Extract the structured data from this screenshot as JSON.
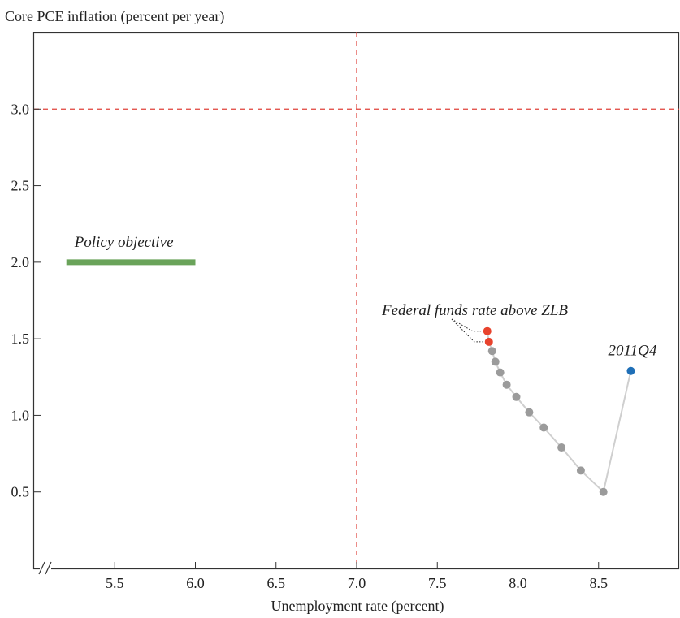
{
  "chart_data": {
    "type": "scatter",
    "ylabel": "Core PCE inflation (percent per year)",
    "xlabel": "Unemployment rate (percent)",
    "xlim": [
      5.0,
      9.0
    ],
    "ylim": [
      0.0,
      3.5
    ],
    "x_ticks": [
      5.5,
      6.0,
      6.5,
      7.0,
      7.5,
      8.0,
      8.5
    ],
    "x_tick_labels": [
      "5.5",
      "6.0",
      "6.5",
      "7.0",
      "7.5",
      "8.0",
      "8.5"
    ],
    "y_ticks": [
      0.5,
      1.0,
      1.5,
      2.0,
      2.5,
      3.0
    ],
    "y_tick_labels": [
      "0.5",
      "1.0",
      "1.5",
      "2.0",
      "2.5",
      "3.0"
    ],
    "grid": false,
    "threshold_lines": {
      "x": 7.0,
      "y": 3.0,
      "color": "#e0413a"
    },
    "policy_objective": {
      "label": "Policy objective",
      "y": 2.0,
      "x_range": [
        5.2,
        6.0
      ],
      "color": "#6aa35a"
    },
    "path": {
      "color": "#cfcfcf",
      "points": [
        {
          "x": 8.7,
          "y": 1.29,
          "color": "#1f6fb7"
        },
        {
          "x": 8.53,
          "y": 0.5,
          "color": "#9b9b9b"
        },
        {
          "x": 8.39,
          "y": 0.64,
          "color": "#9b9b9b"
        },
        {
          "x": 8.27,
          "y": 0.79,
          "color": "#9b9b9b"
        },
        {
          "x": 8.16,
          "y": 0.92,
          "color": "#9b9b9b"
        },
        {
          "x": 8.07,
          "y": 1.02,
          "color": "#9b9b9b"
        },
        {
          "x": 7.99,
          "y": 1.12,
          "color": "#9b9b9b"
        },
        {
          "x": 7.93,
          "y": 1.2,
          "color": "#9b9b9b"
        },
        {
          "x": 7.89,
          "y": 1.28,
          "color": "#9b9b9b"
        },
        {
          "x": 7.86,
          "y": 1.35,
          "color": "#9b9b9b"
        },
        {
          "x": 7.84,
          "y": 1.42,
          "color": "#9b9b9b"
        },
        {
          "x": 7.82,
          "y": 1.48,
          "color": "#e8432d"
        },
        {
          "x": 7.81,
          "y": 1.55,
          "color": "#e8432d"
        }
      ]
    },
    "annotations": {
      "start_label": "2011Q4",
      "zlb_label": "Federal funds rate above ZLB"
    }
  }
}
